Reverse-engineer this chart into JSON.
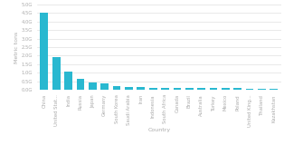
{
  "categories": [
    "China",
    "United Stat...",
    "India",
    "Russia",
    "Japan",
    "Germany",
    "South Korea",
    "Saudi Arabia",
    "Iran",
    "Indonesia",
    "South Africa",
    "Canada",
    "Brazil",
    "Australia",
    "Turkey",
    "Mexico",
    "Poland",
    "United King...",
    "Thailand",
    "Kazakhstan"
  ],
  "values": [
    4.53,
    1.92,
    1.07,
    0.63,
    0.44,
    0.36,
    0.23,
    0.18,
    0.16,
    0.14,
    0.13,
    0.13,
    0.12,
    0.12,
    0.11,
    0.1,
    0.1,
    0.09,
    0.09,
    0.08
  ],
  "bar_color": "#29b8d0",
  "background_color": "#ffffff",
  "ylabel": "Metric tons",
  "xlabel": "Country",
  "ylim": [
    0,
    5.0
  ],
  "yticks": [
    0.0,
    0.5,
    1.0,
    1.5,
    2.0,
    2.5,
    3.0,
    3.5,
    4.0,
    4.5,
    5.0
  ],
  "ytick_labels": [
    "0.0G",
    "0.5G",
    "1.0G",
    "1.5G",
    "2.0G",
    "2.5G",
    "3.0G",
    "3.5G",
    "4.0G",
    "4.5G",
    "5.0G"
  ],
  "grid_color": "#e0e0e0",
  "tick_color": "#aaaaaa",
  "label_fontsize": 3.8,
  "axis_label_fontsize": 4.5,
  "bar_width": 0.65
}
